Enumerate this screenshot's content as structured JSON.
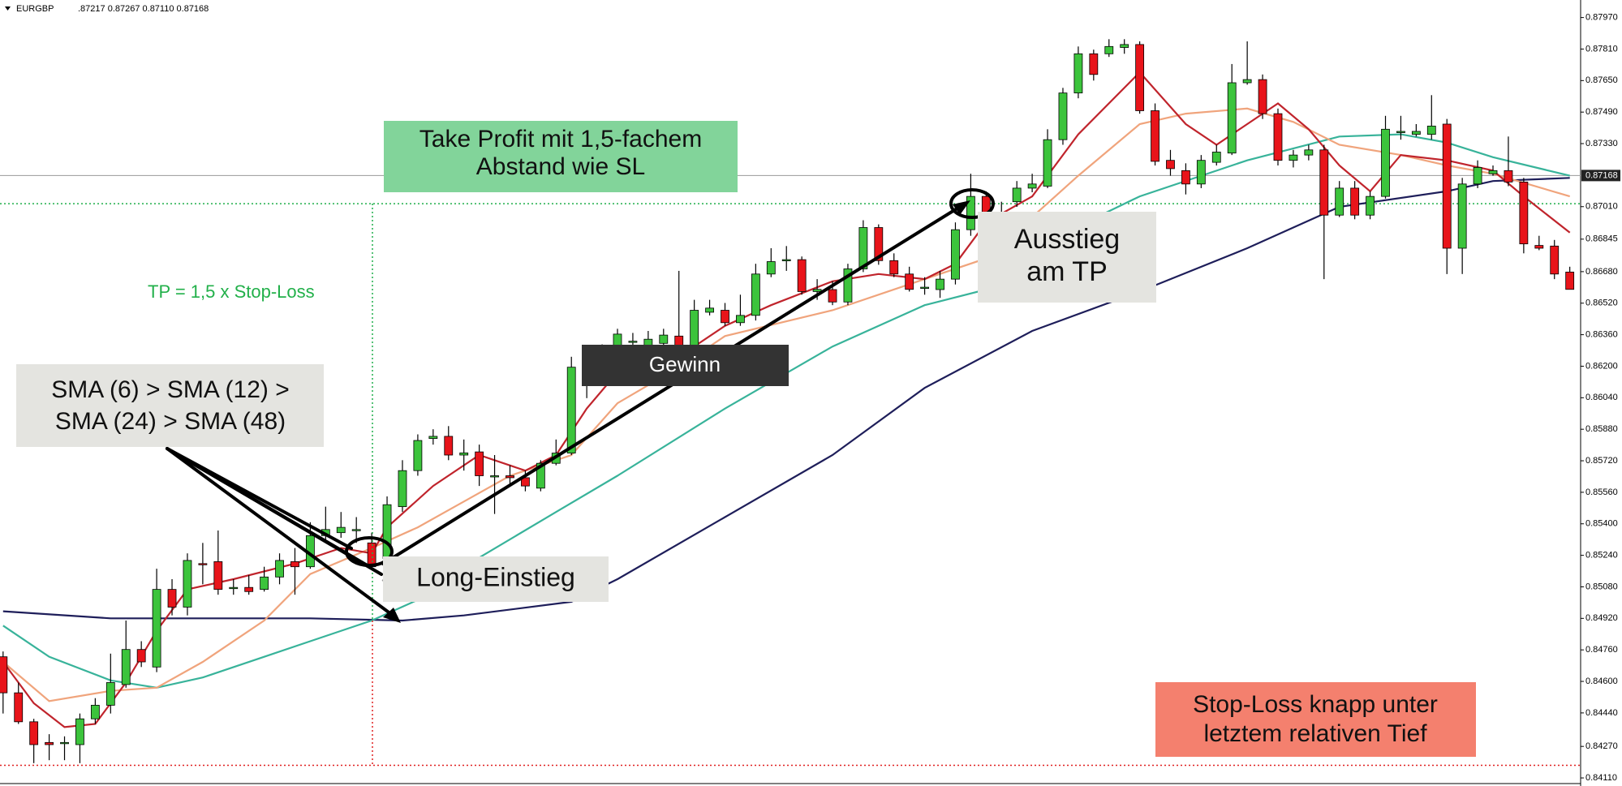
{
  "header": {
    "symbol": "EURGBP",
    "quote": ".87217 0.87267 0.87110 0.87168"
  },
  "chart_data": {
    "type": "candlestick",
    "up_color": "#3cc43c",
    "down_color": "#e8141a",
    "ylim": [
      0.84069,
      0.88059
    ],
    "yticks": [
      {
        "value": 0.8797,
        "label": "0.87970"
      },
      {
        "value": 0.8781,
        "label": "0.87810"
      },
      {
        "value": 0.8765,
        "label": "0.87650"
      },
      {
        "value": 0.8749,
        "label": "0.87490"
      },
      {
        "value": 0.8733,
        "label": "0.87330"
      },
      {
        "value": 0.8701,
        "label": "0.87010"
      },
      {
        "value": 0.86845,
        "label": "0.86845"
      },
      {
        "value": 0.8668,
        "label": "0.86680"
      },
      {
        "value": 0.8652,
        "label": "0.86520"
      },
      {
        "value": 0.8636,
        "label": "0.86360"
      },
      {
        "value": 0.862,
        "label": "0.86200"
      },
      {
        "value": 0.8604,
        "label": "0.86040"
      },
      {
        "value": 0.8588,
        "label": "0.85880"
      },
      {
        "value": 0.8572,
        "label": "0.85720"
      },
      {
        "value": 0.8556,
        "label": "0.85560"
      },
      {
        "value": 0.854,
        "label": "0.85400"
      },
      {
        "value": 0.8524,
        "label": "0.85240"
      },
      {
        "value": 0.8508,
        "label": "0.85080"
      },
      {
        "value": 0.8492,
        "label": "0.84920"
      },
      {
        "value": 0.8476,
        "label": "0.84760"
      },
      {
        "value": 0.846,
        "label": "0.84600"
      },
      {
        "value": 0.8444,
        "label": "0.84440"
      },
      {
        "value": 0.8427,
        "label": "0.84270"
      },
      {
        "value": 0.8411,
        "label": "0.84110"
      }
    ],
    "last_price": 0.87168,
    "last_price_color": "#9a9a9a",
    "levels": [
      {
        "value": 0.87025,
        "color": "#1fae4a"
      },
      {
        "value": 0.84174,
        "color": "#e02020"
      }
    ],
    "open": [
      0.84725,
      0.84542,
      0.84395,
      0.8429,
      0.8429,
      0.84279,
      0.8441,
      0.84479,
      0.84584,
      0.84762,
      0.84673,
      0.85067,
      0.84977,
      0.85198,
      0.85208,
      0.85077,
      0.85077,
      0.85067,
      0.8513,
      0.85208,
      0.85182,
      0.8534,
      0.85355,
      0.85371,
      0.85303,
      0.85224,
      0.85487,
      0.8567,
      0.85833,
      0.85844,
      0.85749,
      0.85765,
      0.85644,
      0.85644,
      0.85634,
      0.85581,
      0.85707,
      0.85759,
      0.86195,
      0.86127,
      0.86274,
      0.86327,
      0.863,
      0.86316,
      0.86353,
      0.863,
      0.86474,
      0.86484,
      0.86421,
      0.86458,
      0.86668,
      0.86741,
      0.86741,
      0.86579,
      0.86589,
      0.86526,
      0.86694,
      0.86904,
      0.86736,
      0.86668,
      0.86601,
      0.86589,
      0.86642,
      0.86893,
      0.87062,
      0.86978,
      0.87035,
      0.87104,
      0.87114,
      0.8735,
      0.87587,
      0.87786,
      0.87786,
      0.87818,
      0.87833,
      0.87497,
      0.87245,
      0.87193,
      0.87125,
      0.87235,
      0.87282,
      0.87639,
      0.87655,
      0.87482,
      0.87245,
      0.87272,
      0.87298,
      0.86967,
      0.87104,
      0.86967,
      0.87062,
      0.87392,
      0.87377,
      0.87377,
      0.87429,
      0.86799,
      0.87125,
      0.87177,
      0.87193,
      0.87135,
      0.86813,
      0.8681,
      0.86678
    ],
    "high": [
      0.84752,
      0.84594,
      0.8441,
      0.84332,
      0.84321,
      0.84437,
      0.84515,
      0.84741,
      0.84909,
      0.84804,
      0.85172,
      0.85119,
      0.8525,
      0.85303,
      0.85366,
      0.85119,
      0.8514,
      0.85182,
      0.8525,
      0.85277,
      0.85408,
      0.85487,
      0.8546,
      0.85434,
      0.85355,
      0.85539,
      0.85723,
      0.85854,
      0.8588,
      0.85896,
      0.85828,
      0.85802,
      0.85749,
      0.85697,
      0.8567,
      0.85723,
      0.85828,
      0.86248,
      0.86274,
      0.86311,
      0.8639,
      0.86369,
      0.86379,
      0.8639,
      0.86684,
      0.86537,
      0.86537,
      0.86521,
      0.86563,
      0.8672,
      0.86799,
      0.8681,
      0.86757,
      0.86642,
      0.86631,
      0.8672,
      0.86941,
      0.8692,
      0.86773,
      0.86705,
      0.86652,
      0.86684,
      0.8693,
      0.87177,
      0.87088,
      0.87035,
      0.8714,
      0.87177,
      0.87403,
      0.87613,
      0.87823,
      0.87807,
      0.8786,
      0.8786,
      0.87849,
      0.87534,
      0.87298,
      0.8723,
      0.87272,
      0.87324,
      0.87734,
      0.87849,
      0.87681,
      0.87508,
      0.87298,
      0.87324,
      0.87324,
      0.8714,
      0.8714,
      0.87088,
      0.87471,
      0.87471,
      0.87429,
      0.87576,
      0.87455,
      0.87156,
      0.87245,
      0.87219,
      0.87366,
      0.87156,
      0.86862,
      0.86841,
      0.86705
    ],
    "low": [
      0.84437,
      0.84384,
      0.84185,
      0.842,
      0.842,
      0.84185,
      0.84384,
      0.84437,
      0.84568,
      0.84673,
      0.84647,
      0.84935,
      0.84935,
      0.85093,
      0.8504,
      0.8504,
      0.8504,
      0.85056,
      0.85093,
      0.8504,
      0.85172,
      0.85303,
      0.85329,
      0.85303,
      0.85172,
      0.85198,
      0.8546,
      0.85644,
      0.85802,
      0.85723,
      0.8567,
      0.85592,
      0.8545,
      0.85592,
      0.85565,
      0.85565,
      0.85697,
      0.85749,
      0.86038,
      0.86106,
      0.86248,
      0.86274,
      0.86274,
      0.86285,
      0.86274,
      0.86274,
      0.86458,
      0.86405,
      0.86405,
      0.86432,
      0.86652,
      0.86684,
      0.86563,
      0.86537,
      0.8651,
      0.8651,
      0.86678,
      0.86715,
      0.86652,
      0.86579,
      0.86563,
      0.86547,
      0.86615,
      0.86862,
      0.86957,
      0.86946,
      0.87009,
      0.87083,
      0.87104,
      0.87324,
      0.8756,
      0.8765,
      0.8777,
      0.87786,
      0.87482,
      0.87219,
      0.87167,
      0.87072,
      0.87104,
      0.87219,
      0.87272,
      0.87629,
      0.87455,
      0.87219,
      0.87209,
      0.87245,
      0.86642,
      0.86957,
      0.86946,
      0.86946,
      0.87051,
      0.8735,
      0.87366,
      0.8735,
      0.86668,
      0.86668,
      0.87104,
      0.87167,
      0.87114,
      0.86773,
      0.86789,
      0.86642,
      0.86589
    ],
    "close": [
      0.84542,
      0.84395,
      0.84279,
      0.84279,
      0.8429,
      0.8441,
      0.84479,
      0.84594,
      0.84762,
      0.84699,
      0.85067,
      0.84977,
      0.85214,
      0.85193,
      0.85067,
      0.85077,
      0.85056,
      0.8513,
      0.85214,
      0.85182,
      0.8534,
      0.85371,
      0.85382,
      0.85371,
      0.85182,
      0.85497,
      0.8567,
      0.85823,
      0.85844,
      0.85749,
      0.8576,
      0.85644,
      0.85644,
      0.85634,
      0.85592,
      0.85707,
      0.85759,
      0.86195,
      0.86127,
      0.86274,
      0.86363,
      0.86327,
      0.86337,
      0.86358,
      0.86285,
      0.86484,
      0.86495,
      0.86421,
      0.86458,
      0.86668,
      0.86731,
      0.86741,
      0.86579,
      0.8659,
      0.86526,
      0.86694,
      0.86904,
      0.86736,
      0.86668,
      0.8659,
      0.86601,
      0.86642,
      0.86893,
      0.87062,
      0.86983,
      0.86978,
      0.87104,
      0.87125,
      0.8735,
      0.87587,
      0.87786,
      0.87681,
      0.87823,
      0.87833,
      0.87497,
      0.8724,
      0.87203,
      0.87125,
      0.87245,
      0.87287,
      0.87639,
      0.87655,
      0.87482,
      0.87245,
      0.87272,
      0.87298,
      0.86967,
      0.87104,
      0.86967,
      0.87062,
      0.87403,
      0.87392,
      0.87392,
      0.87419,
      0.86799,
      0.87125,
      0.87209,
      0.87193,
      0.87135,
      0.86821,
      0.86799,
      0.86668,
      0.8659
    ],
    "series": [
      {
        "color": "#1e1e5a",
        "x": [
          0,
          7,
          13,
          20,
          26,
          30,
          37,
          40,
          47,
          54,
          60,
          67,
          74,
          81,
          87,
          94,
          97,
          102
        ],
        "values": [
          0.84956,
          0.8492,
          0.8492,
          0.8492,
          0.84909,
          0.84935,
          0.85004,
          0.85119,
          0.85434,
          0.85749,
          0.8609,
          0.86379,
          0.86579,
          0.86799,
          0.87009,
          0.87088,
          0.8714,
          0.87156
        ]
      },
      {
        "color": "#38b39a",
        "x": [
          0,
          3,
          7,
          10,
          13,
          17,
          20,
          24,
          27,
          30,
          36,
          40,
          47,
          54,
          60,
          64,
          67,
          74,
          81,
          87,
          91,
          94,
          97,
          102
        ],
        "values": [
          0.84883,
          0.84725,
          0.84605,
          0.84568,
          0.8462,
          0.84725,
          0.84804,
          0.84909,
          0.85014,
          0.85182,
          0.8546,
          0.85644,
          0.85985,
          0.863,
          0.8651,
          0.86589,
          0.86799,
          0.87062,
          0.87245,
          0.87366,
          0.87377,
          0.87335,
          0.87261,
          0.87167
        ]
      },
      {
        "color": "#f0a47c",
        "x": [
          0,
          3,
          7,
          10,
          13,
          17,
          20,
          24,
          27,
          30,
          33,
          37,
          40,
          44,
          47,
          54,
          60,
          64,
          67,
          70,
          74,
          77,
          81,
          84,
          87,
          91,
          94,
          97,
          102
        ],
        "values": [
          0.84699,
          0.845,
          0.84552,
          0.84568,
          0.84699,
          0.84909,
          0.85145,
          0.85277,
          0.85382,
          0.85513,
          0.85644,
          0.85749,
          0.86012,
          0.86195,
          0.86353,
          0.86484,
          0.86642,
          0.86747,
          0.86957,
          0.87167,
          0.87429,
          0.87482,
          0.87508,
          0.8744,
          0.87324,
          0.87272,
          0.87219,
          0.87177,
          0.87062
        ]
      },
      {
        "color": "#c0242c",
        "x": [
          0,
          2,
          4,
          6,
          8,
          10,
          12,
          15,
          19,
          22,
          24,
          25,
          28,
          31,
          34,
          36,
          38,
          40,
          44,
          47,
          50,
          54,
          57,
          60,
          62,
          64,
          67,
          70,
          74,
          77,
          79,
          81,
          83,
          85,
          87,
          89,
          91,
          94,
          97,
          99,
          102
        ],
        "values": [
          0.84699,
          0.84489,
          0.84368,
          0.84384,
          0.84594,
          0.84857,
          0.85067,
          0.85119,
          0.85198,
          0.85277,
          0.8525,
          0.85382,
          0.85592,
          0.85749,
          0.8567,
          0.85749,
          0.85985,
          0.86169,
          0.86248,
          0.86405,
          0.8651,
          0.86631,
          0.86668,
          0.86642,
          0.8672,
          0.8693,
          0.87062,
          0.87377,
          0.87692,
          0.87429,
          0.87324,
          0.87429,
          0.87534,
          0.87403,
          0.87219,
          0.87088,
          0.87272,
          0.87245,
          0.87193,
          0.87062,
          0.86878
        ]
      }
    ]
  },
  "annotations": {
    "take_profit": [
      "Take Profit mit 1,5-fachem",
      "Abstand wie SL"
    ],
    "tp_rule": "TP = 1,5 x Stop-Loss",
    "sma": [
      "SMA (6) > SMA (12) >",
      "SMA (24) > SMA (48)"
    ],
    "profit": "Gewinn",
    "entry": "Long-Einstieg",
    "exit": [
      "Ausstieg",
      "am TP"
    ],
    "stop_loss": [
      "Stop-Loss knapp unter",
      "letztem relativen Tief"
    ]
  }
}
